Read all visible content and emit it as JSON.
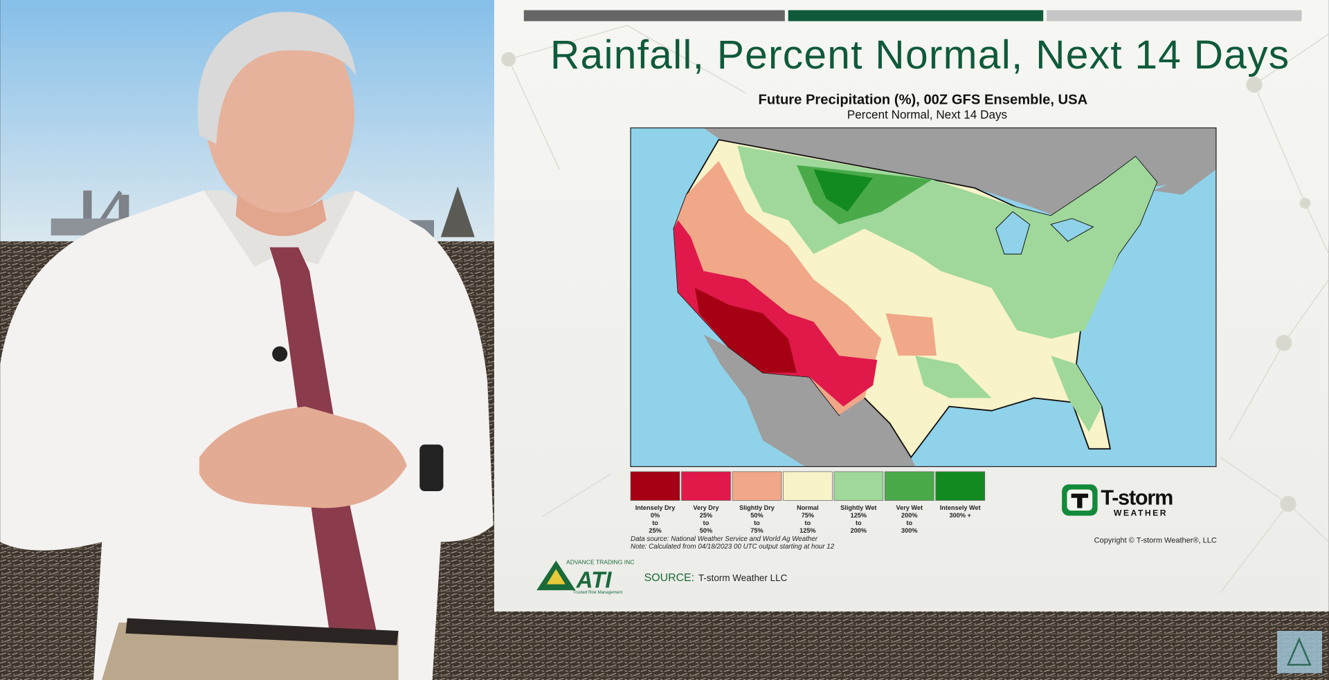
{
  "slide": {
    "title": "Rainfall, Percent Normal, Next 14 Days"
  },
  "map": {
    "title": "Future Precipitation (%), 00Z GFS Ensemble, USA",
    "subtitle": "Percent Normal, Next 14 Days",
    "legend": [
      {
        "name": "Intensely Dry",
        "range": [
          "0%",
          "to",
          "25%"
        ],
        "color": "#a50014"
      },
      {
        "name": "Very Dry",
        "range": [
          "25%",
          "to",
          "50%"
        ],
        "color": "#e0194a"
      },
      {
        "name": "Slightly Dry",
        "range": [
          "50%",
          "to",
          "75%"
        ],
        "color": "#f0a888"
      },
      {
        "name": "Normal",
        "range": [
          "75%",
          "to",
          "125%"
        ],
        "color": "#f8f3c8"
      },
      {
        "name": "Slightly Wet",
        "range": [
          "125%",
          "to",
          "200%"
        ],
        "color": "#9fd89a"
      },
      {
        "name": "Very Wet",
        "range": [
          "200%",
          "to",
          "300%"
        ],
        "color": "#4aaa4a"
      },
      {
        "name": "Intensely Wet",
        "range": [
          "300% +"
        ],
        "color": "#138a20"
      }
    ],
    "notes": [
      "Data source: National Weather Service and World Ag Weather",
      "Note: Calculated from 04/18/2023 00 UTC output starting at hour 12"
    ]
  },
  "tstorm_logo": {
    "name": "T-storm",
    "sub": "WEATHER",
    "copyright": "Copyright © T-storm Weather®, LLC"
  },
  "ati_logo": {
    "top": "ADVANCE TRADING INC",
    "name": "ATI",
    "tagline": "Trusted Risk Management"
  },
  "source": {
    "label": "SOURCE:",
    "text": "T-storm Weather LLC"
  }
}
